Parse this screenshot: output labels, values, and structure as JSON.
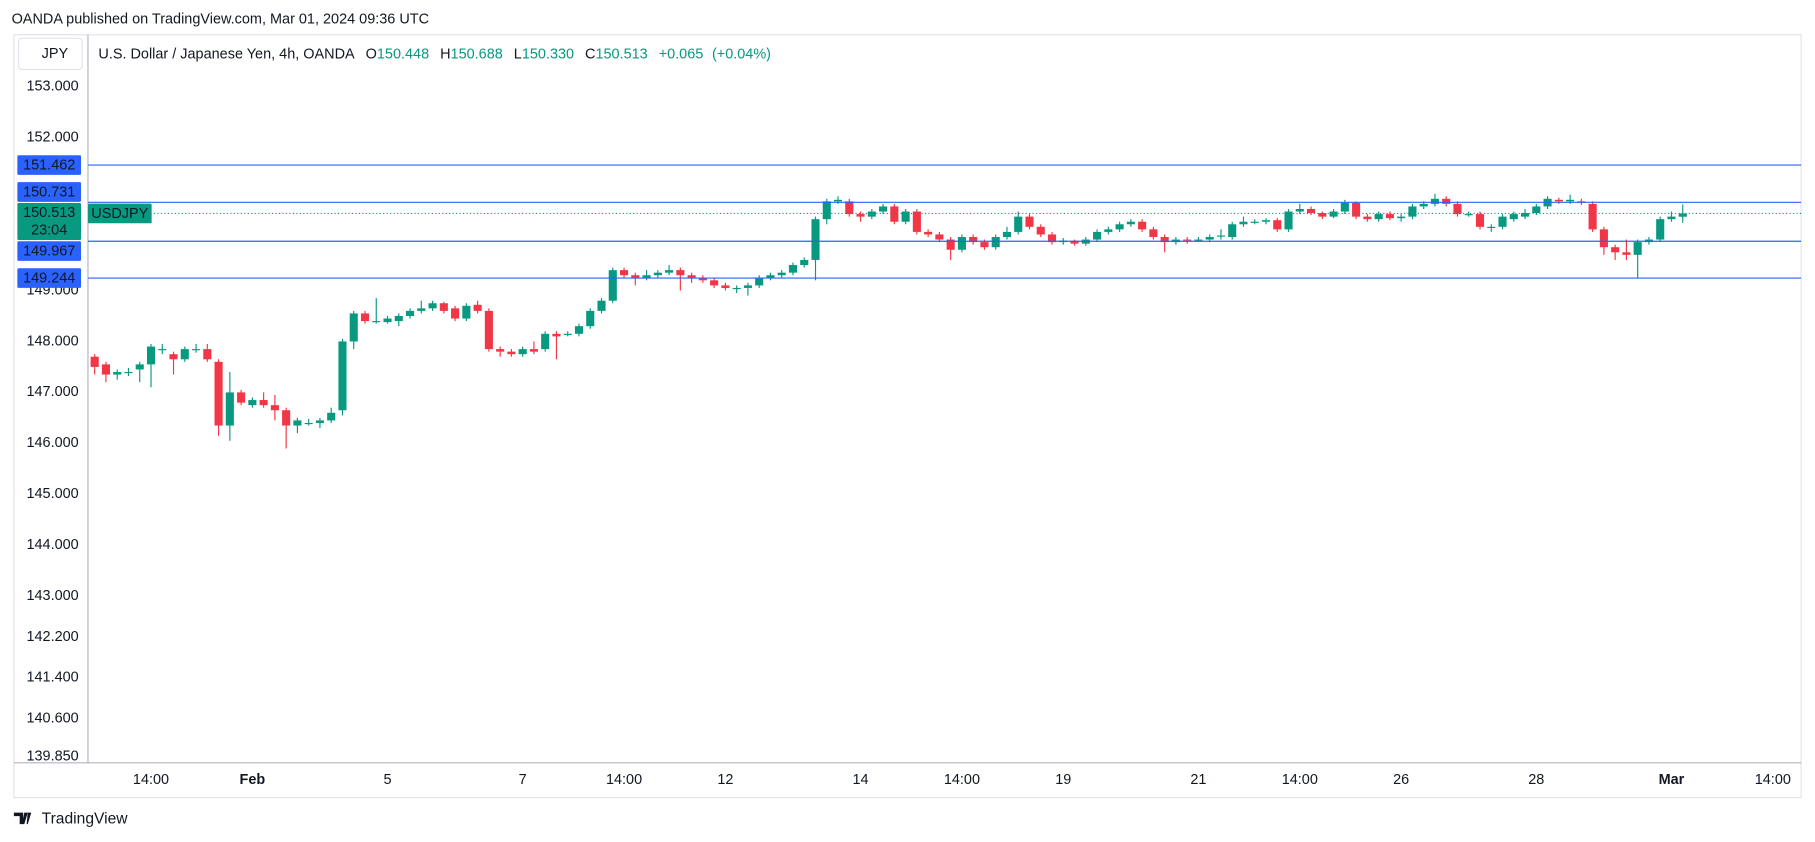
{
  "header": {
    "publisher": "OANDA published on TradingView.com, Mar 01, 2024 09:36 UTC",
    "currency_button": "JPY",
    "footer_logo": "TradingView"
  },
  "chart_data": {
    "type": "candlestick",
    "title": "U.S. Dollar / Japanese Yen, 4h, OANDA",
    "legend": {
      "open": {
        "prefix": "O",
        "value": 150.448,
        "label": "150.448"
      },
      "high": {
        "prefix": "H",
        "value": 150.688,
        "label": "150.688"
      },
      "low": {
        "prefix": "L",
        "value": 150.33,
        "label": "150.330"
      },
      "close": {
        "prefix": "C",
        "value": 150.513,
        "label": "150.513"
      },
      "change": {
        "value": 0.065,
        "label": "+0.065"
      },
      "change_percent": {
        "value": 0.04,
        "label": "(+0.04%)"
      }
    },
    "up_color": "#089981",
    "down_color": "#f23645",
    "grid": false,
    "categories": [
      null,
      null,
      null,
      null,
      null,
      "14:00",
      null,
      null,
      null,
      null,
      null,
      null,
      null,
      null,
      "Feb",
      null,
      null,
      null,
      null,
      null,
      null,
      null,
      null,
      null,
      null,
      null,
      "5",
      null,
      null,
      null,
      null,
      null,
      null,
      null,
      null,
      null,
      null,
      null,
      "7",
      null,
      null,
      null,
      null,
      null,
      null,
      null,
      null,
      "14:00",
      null,
      null,
      null,
      null,
      null,
      null,
      null,
      null,
      "12",
      null,
      null,
      null,
      null,
      null,
      null,
      null,
      null,
      null,
      null,
      null,
      "14",
      null,
      null,
      null,
      null,
      null,
      null,
      null,
      null,
      "14:00",
      null,
      null,
      null,
      null,
      null,
      null,
      null,
      null,
      "19",
      null,
      null,
      null,
      null,
      null,
      null,
      null,
      null,
      null,
      null,
      null,
      "21",
      null,
      null,
      null,
      null,
      null,
      null,
      null,
      null,
      "14:00",
      null,
      null,
      null,
      null,
      null,
      null,
      null,
      null,
      "26",
      null,
      null,
      null,
      null,
      null,
      null,
      null,
      null,
      null,
      null,
      null,
      "28",
      null,
      null,
      null,
      null,
      null,
      null,
      null,
      null,
      null,
      null,
      null,
      "Mar",
      null,
      null,
      null,
      null,
      null,
      null,
      null,
      null,
      "14:00"
    ],
    "open": [
      147.7,
      147.55,
      147.35,
      147.4,
      147.45,
      147.55,
      147.85,
      147.75,
      147.65,
      147.85,
      147.85,
      147.6,
      146.35,
      147.0,
      146.75,
      146.85,
      146.75,
      146.65,
      146.35,
      146.4,
      146.4,
      146.45,
      146.65,
      148.0,
      148.55,
      148.4,
      148.38,
      148.4,
      148.5,
      148.6,
      148.65,
      148.75,
      148.65,
      148.45,
      148.72,
      148.6,
      147.85,
      147.8,
      147.75,
      147.85,
      147.85,
      148.15,
      148.15,
      148.15,
      148.3,
      148.6,
      148.8,
      149.4,
      149.3,
      149.25,
      149.3,
      149.35,
      149.4,
      149.3,
      149.25,
      149.2,
      149.1,
      149.05,
      149.05,
      149.1,
      149.25,
      149.3,
      149.35,
      149.5,
      149.6,
      150.4,
      150.75,
      150.75,
      150.5,
      150.45,
      150.55,
      150.65,
      150.35,
      150.55,
      150.15,
      150.1,
      150.0,
      149.8,
      150.05,
      149.95,
      149.85,
      150.05,
      150.15,
      150.45,
      150.25,
      150.1,
      149.95,
      149.98,
      149.92,
      150.0,
      150.15,
      150.2,
      150.3,
      150.35,
      150.2,
      150.05,
      149.95,
      150.0,
      149.98,
      150.0,
      150.08,
      150.05,
      150.3,
      150.35,
      150.35,
      150.38,
      150.2,
      150.55,
      150.6,
      150.52,
      150.45,
      150.55,
      150.72,
      150.45,
      150.4,
      150.5,
      150.42,
      150.45,
      150.65,
      150.7,
      150.8,
      150.7,
      150.5,
      150.5,
      150.25,
      150.25,
      150.4,
      150.45,
      150.52,
      150.65,
      150.78,
      150.75,
      150.75,
      150.7,
      150.2,
      149.85,
      149.75,
      149.7,
      149.95,
      150.0,
      150.4,
      150.448,
      null,
      null,
      null,
      null,
      null,
      null,
      null,
      null
    ],
    "high": [
      147.75,
      147.6,
      147.45,
      147.48,
      147.6,
      147.95,
      147.95,
      147.8,
      147.9,
      147.95,
      147.95,
      147.65,
      147.4,
      147.05,
      146.9,
      147.0,
      146.95,
      146.7,
      146.5,
      146.48,
      146.5,
      146.7,
      148.05,
      148.6,
      148.6,
      148.85,
      148.5,
      148.55,
      148.65,
      148.8,
      148.8,
      148.78,
      148.7,
      148.75,
      148.8,
      148.65,
      147.9,
      147.85,
      147.9,
      148.0,
      148.2,
      148.2,
      148.2,
      148.35,
      148.65,
      148.85,
      149.45,
      149.45,
      149.35,
      149.4,
      149.4,
      149.5,
      149.45,
      149.35,
      149.3,
      149.25,
      149.15,
      149.1,
      149.15,
      149.3,
      149.35,
      149.4,
      149.55,
      149.65,
      150.45,
      150.8,
      150.85,
      150.8,
      150.55,
      150.6,
      150.7,
      150.7,
      150.6,
      150.6,
      150.2,
      150.15,
      150.05,
      150.1,
      150.1,
      150.0,
      150.1,
      150.25,
      150.55,
      150.5,
      150.3,
      150.15,
      150.03,
      150.0,
      150.05,
      150.2,
      150.25,
      150.35,
      150.4,
      150.4,
      150.25,
      150.1,
      150.05,
      150.05,
      150.05,
      150.1,
      150.2,
      150.35,
      150.45,
      150.4,
      150.42,
      150.42,
      150.6,
      150.7,
      150.65,
      150.55,
      150.6,
      150.78,
      150.75,
      150.5,
      150.55,
      150.55,
      150.5,
      150.7,
      150.75,
      150.9,
      150.85,
      150.75,
      150.55,
      150.55,
      150.3,
      150.5,
      150.55,
      150.6,
      150.7,
      150.85,
      150.82,
      150.88,
      150.8,
      150.75,
      150.25,
      149.9,
      150.0,
      150.0,
      150.05,
      150.45,
      150.55,
      150.688,
      null,
      null,
      null,
      null,
      null,
      null,
      null,
      null
    ],
    "low": [
      147.35,
      147.2,
      147.25,
      147.32,
      147.2,
      147.1,
      147.75,
      147.35,
      147.6,
      147.78,
      147.6,
      146.15,
      146.05,
      146.75,
      146.7,
      146.7,
      146.45,
      145.9,
      146.2,
      146.35,
      146.3,
      146.4,
      146.55,
      147.85,
      148.35,
      148.35,
      148.35,
      148.3,
      148.45,
      148.55,
      148.6,
      148.55,
      148.4,
      148.4,
      148.55,
      147.8,
      147.7,
      147.7,
      147.7,
      147.75,
      147.8,
      147.65,
      148.1,
      148.1,
      148.25,
      148.55,
      148.75,
      149.25,
      149.1,
      149.2,
      149.25,
      149.3,
      149.0,
      149.15,
      149.15,
      149.05,
      149.0,
      148.95,
      148.9,
      149.05,
      149.2,
      149.25,
      149.3,
      149.45,
      149.2,
      150.3,
      150.7,
      150.45,
      150.35,
      150.4,
      150.5,
      150.3,
      150.3,
      150.1,
      150.05,
      149.95,
      149.6,
      149.75,
      149.9,
      149.8,
      149.8,
      150.0,
      150.1,
      150.2,
      150.05,
      149.9,
      149.9,
      149.88,
      149.88,
      149.95,
      150.1,
      150.15,
      150.25,
      150.15,
      150.0,
      149.75,
      149.9,
      149.92,
      149.95,
      149.95,
      150.0,
      150.0,
      150.25,
      150.3,
      150.3,
      150.15,
      150.15,
      150.5,
      150.48,
      150.4,
      150.42,
      150.5,
      150.4,
      150.35,
      150.35,
      150.38,
      150.35,
      150.4,
      150.6,
      150.65,
      150.65,
      150.45,
      150.45,
      150.2,
      150.15,
      150.2,
      150.35,
      150.4,
      150.48,
      150.6,
      150.7,
      150.7,
      150.68,
      150.15,
      149.7,
      149.6,
      149.6,
      149.25,
      149.9,
      149.95,
      150.35,
      150.33,
      null,
      null,
      null,
      null,
      null,
      null,
      null,
      null
    ],
    "close": [
      147.5,
      147.35,
      147.4,
      147.4,
      147.55,
      147.9,
      147.85,
      147.65,
      147.85,
      147.85,
      147.65,
      146.35,
      147.0,
      146.8,
      146.85,
      146.75,
      146.65,
      146.35,
      146.45,
      146.4,
      146.45,
      146.6,
      148.0,
      148.55,
      148.4,
      148.4,
      148.45,
      148.5,
      148.6,
      148.65,
      148.75,
      148.6,
      148.45,
      148.7,
      148.6,
      147.85,
      147.8,
      147.75,
      147.85,
      147.8,
      148.15,
      148.1,
      148.15,
      148.3,
      148.6,
      148.8,
      149.4,
      149.3,
      149.25,
      149.3,
      149.35,
      149.4,
      149.3,
      149.25,
      149.2,
      149.1,
      149.05,
      149.05,
      149.1,
      149.25,
      149.3,
      149.35,
      149.5,
      149.6,
      150.4,
      150.75,
      150.78,
      150.5,
      150.45,
      150.55,
      150.65,
      150.35,
      150.55,
      150.15,
      150.1,
      150.0,
      149.8,
      150.05,
      149.95,
      149.85,
      150.05,
      150.15,
      150.45,
      150.25,
      150.1,
      149.95,
      149.98,
      149.92,
      150.0,
      150.15,
      150.2,
      150.3,
      150.35,
      150.2,
      150.05,
      149.95,
      150.0,
      149.98,
      150.0,
      150.05,
      150.08,
      150.3,
      150.35,
      150.35,
      150.38,
      150.2,
      150.55,
      150.6,
      150.52,
      150.45,
      150.55,
      150.72,
      150.45,
      150.4,
      150.5,
      150.42,
      150.45,
      150.65,
      150.7,
      150.8,
      150.7,
      150.5,
      150.5,
      150.25,
      150.25,
      150.45,
      150.5,
      150.52,
      150.65,
      150.8,
      150.75,
      150.78,
      150.72,
      150.2,
      149.85,
      149.75,
      149.7,
      149.95,
      150.0,
      150.4,
      150.45,
      150.513,
      null,
      null,
      null,
      null,
      null,
      null,
      null,
      null
    ],
    "ylim": [
      139.73,
      154.02
    ],
    "yticks": [
      {
        "value": 153,
        "label": "153.000"
      },
      {
        "value": 152,
        "label": "152.000"
      },
      {
        "value": 149,
        "label": "149.000"
      },
      {
        "value": 148,
        "label": "148.000"
      },
      {
        "value": 147,
        "label": "147.000"
      },
      {
        "value": 146,
        "label": "146.000"
      },
      {
        "value": 145,
        "label": "145.000"
      },
      {
        "value": 144,
        "label": "144.000"
      },
      {
        "value": 143,
        "label": "143.000"
      },
      {
        "value": 142.2,
        "label": "142.200"
      },
      {
        "value": 141.4,
        "label": "141.400"
      },
      {
        "value": 140.6,
        "label": "140.600"
      },
      {
        "value": 139.85,
        "label": "139.850"
      }
    ],
    "level_color": "#2962ff",
    "levels": [
      {
        "value": 151.462,
        "label": "151.462"
      },
      {
        "value": 150.731,
        "label": "150.731"
      },
      {
        "value": 149.967,
        "label": "149.967"
      },
      {
        "value": 149.244,
        "label": "149.244"
      }
    ],
    "last_price": {
      "value": 150.513,
      "label": "150.513",
      "symbol": "USDJPY",
      "countdown": "23:04"
    }
  }
}
